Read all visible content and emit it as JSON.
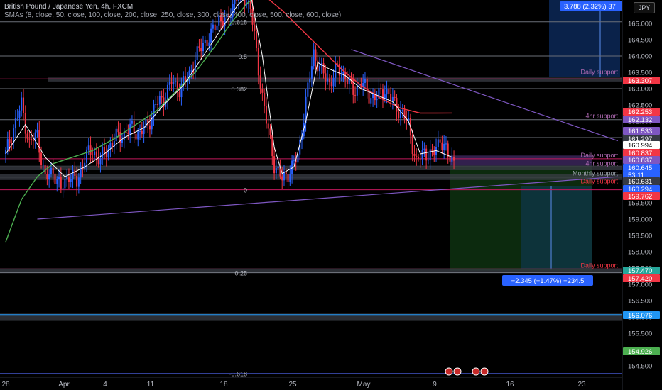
{
  "header": {
    "title": "British Pound / Japanese Yen, 4h, FXCM",
    "indicators": "SMAs (8, close, 50, close, 100, close, 200, close, 250, close, 300, close, 400, close, 500, close, 600, close)"
  },
  "currency_button": "JPY",
  "colors": {
    "candle_up": "#2962ff",
    "candle_down": "#f23645",
    "sma_fast": "#ffffff",
    "sma_red": "#f23645",
    "sma_green": "#4caf50",
    "trendline": "#7e57c2",
    "long_zone": "#1b5e20",
    "short_zone": "#4a148c",
    "target_zone": "#0d2a5c"
  },
  "fib_labels": [
    {
      "text": "0.618",
      "price": 165.05
    },
    {
      "text": "0.5",
      "price": 164.0
    },
    {
      "text": "0.382",
      "price": 163.0
    },
    {
      "text": "0",
      "price": 159.9
    },
    {
      "text": "0.25",
      "price": 157.36
    },
    {
      "text": "-0.618",
      "price": 154.27
    }
  ],
  "level_labels": [
    {
      "text": "Daily support",
      "price": 163.4,
      "color": "#b06ab3"
    },
    {
      "text": "4hr support",
      "price": 162.05,
      "color": "#b06ab3"
    },
    {
      "text": "Daily support",
      "price": 160.85,
      "color": "#b06ab3"
    },
    {
      "text": "4hr support",
      "price": 160.6,
      "color": "#b06ab3"
    },
    {
      "text": "Monthly support",
      "price": 160.29,
      "color": "#9aa0aa"
    },
    {
      "text": "Daily support",
      "price": 160.05,
      "color": "#f23645"
    },
    {
      "text": "Daily support",
      "price": 157.47,
      "color": "#f23645"
    }
  ],
  "price_tags": [
    {
      "text": "163.307",
      "bg": "#f23645",
      "fg": "#ffffff"
    },
    {
      "text": "162.253",
      "bg": "#f23645",
      "fg": "#ffffff"
    },
    {
      "text": "162.132",
      "bg": "#7e57c2",
      "fg": "#ffffff"
    },
    {
      "text": "161.533",
      "bg": "#7e57c2",
      "fg": "#ffffff"
    },
    {
      "text": "161.297",
      "bg": "#363a45",
      "fg": "#ffffff"
    },
    {
      "text": "160.994",
      "bg": "#ffffff",
      "fg": "#000000"
    },
    {
      "text": "160.837",
      "bg": "#f23645",
      "fg": "#ffffff"
    },
    {
      "text": "160.837",
      "bg": "#7e57c2",
      "fg": "#ffffff"
    },
    {
      "text": "160.645",
      "bg": "#2962ff",
      "fg": "#ffffff"
    },
    {
      "text": "53:11",
      "bg": "#2962ff",
      "fg": "#ffffff"
    },
    {
      "text": "160.631",
      "bg": "#363a45",
      "fg": "#ffffff"
    },
    {
      "text": "160.294",
      "bg": "#2962ff",
      "fg": "#ffffff"
    },
    {
      "text": "159.762",
      "bg": "#f23645",
      "fg": "#ffffff"
    },
    {
      "text": "157.470",
      "bg": "#26a69a",
      "fg": "#ffffff"
    },
    {
      "text": "157.420",
      "bg": "#f23645",
      "fg": "#ffffff"
    },
    {
      "text": "156.076",
      "bg": "#2196f3",
      "fg": "#ffffff"
    },
    {
      "text": "154.926",
      "bg": "#4caf50",
      "fg": "#ffffff"
    }
  ],
  "measure_labels": {
    "top": "3.788 (2.32%) 37",
    "bottom": "−2.345 (−1.47%) −234.5"
  },
  "chart_data": {
    "type": "candlestick",
    "title": "British Pound / Japanese Yen, 4h, FXCM",
    "y_axis": {
      "ticks": [
        "165.000",
        "164.500",
        "164.000",
        "163.500",
        "163.000",
        "162.500",
        "162.000",
        "161.500",
        "161.000",
        "160.500",
        "160.000",
        "159.500",
        "159.000",
        "158.500",
        "158.000",
        "157.500",
        "157.000",
        "156.500",
        "156.000",
        "155.500",
        "155.000",
        "154.500"
      ],
      "range": [
        154.2,
        165.8
      ]
    },
    "x_axis": {
      "ticks": [
        "28",
        "Apr",
        "4",
        "11",
        "18",
        "25",
        "May",
        "9",
        "16",
        "23"
      ]
    },
    "price_path": [
      [
        0,
        161.0
      ],
      [
        4,
        161.8
      ],
      [
        8,
        162.5
      ],
      [
        12,
        161.3
      ],
      [
        16,
        161.6
      ],
      [
        20,
        160.2
      ],
      [
        24,
        160.5
      ],
      [
        28,
        159.9
      ],
      [
        32,
        160.4
      ],
      [
        36,
        160.1
      ],
      [
        40,
        160.9
      ],
      [
        44,
        161.1
      ],
      [
        48,
        160.8
      ],
      [
        52,
        161.2
      ],
      [
        56,
        161.5
      ],
      [
        60,
        161.6
      ],
      [
        64,
        161.8
      ],
      [
        68,
        161.6
      ],
      [
        72,
        161.9
      ],
      [
        76,
        162.5
      ],
      [
        80,
        162.7
      ],
      [
        84,
        163.2
      ],
      [
        88,
        163.0
      ],
      [
        92,
        163.3
      ],
      [
        96,
        163.9
      ],
      [
        100,
        164.4
      ],
      [
        104,
        164.6
      ],
      [
        108,
        165.2
      ],
      [
        112,
        165.0
      ],
      [
        116,
        165.8
      ],
      [
        120,
        165.9
      ],
      [
        124,
        165.5
      ],
      [
        128,
        163.6
      ],
      [
        132,
        162.0
      ],
      [
        136,
        160.7
      ],
      [
        140,
        160.2
      ],
      [
        144,
        160.5
      ],
      [
        148,
        160.9
      ],
      [
        152,
        162.6
      ],
      [
        156,
        164.1
      ],
      [
        160,
        163.5
      ],
      [
        164,
        163.2
      ],
      [
        168,
        163.6
      ],
      [
        172,
        163.4
      ],
      [
        176,
        162.9
      ],
      [
        180,
        163.2
      ],
      [
        184,
        162.8
      ],
      [
        188,
        162.7
      ],
      [
        192,
        163.0
      ],
      [
        196,
        162.6
      ],
      [
        200,
        162.3
      ],
      [
        204,
        161.9
      ],
      [
        208,
        160.7
      ],
      [
        212,
        161.1
      ],
      [
        216,
        160.9
      ],
      [
        220,
        161.5
      ],
      [
        224,
        160.9
      ],
      [
        228,
        160.8
      ]
    ],
    "sma_fast": [
      [
        0,
        161.0
      ],
      [
        10,
        161.9
      ],
      [
        20,
        160.9
      ],
      [
        30,
        160.3
      ],
      [
        40,
        160.6
      ],
      [
        50,
        161.0
      ],
      [
        60,
        161.5
      ],
      [
        70,
        161.8
      ],
      [
        80,
        162.5
      ],
      [
        90,
        163.1
      ],
      [
        100,
        164.0
      ],
      [
        110,
        164.9
      ],
      [
        118,
        165.6
      ],
      [
        124,
        165.9
      ],
      [
        130,
        164.0
      ],
      [
        136,
        161.2
      ],
      [
        140,
        160.4
      ],
      [
        146,
        160.6
      ],
      [
        152,
        162.0
      ],
      [
        158,
        163.8
      ],
      [
        164,
        163.6
      ],
      [
        172,
        163.4
      ],
      [
        180,
        163.0
      ],
      [
        188,
        162.8
      ],
      [
        196,
        162.6
      ],
      [
        204,
        162.0
      ],
      [
        210,
        161.0
      ],
      [
        218,
        161.1
      ],
      [
        226,
        160.9
      ]
    ],
    "sma_red": [
      [
        130,
        165.9
      ],
      [
        140,
        165.4
      ],
      [
        150,
        164.8
      ],
      [
        160,
        164.2
      ],
      [
        170,
        163.6
      ],
      [
        180,
        163.1
      ],
      [
        190,
        162.7
      ],
      [
        200,
        162.4
      ],
      [
        210,
        162.25
      ],
      [
        218,
        162.25
      ],
      [
        226,
        162.253
      ]
    ],
    "sma_green": [
      [
        0,
        158.3
      ],
      [
        8,
        159.6
      ],
      [
        16,
        160.3
      ],
      [
        24,
        160.7
      ],
      [
        34,
        160.9
      ],
      [
        44,
        161.1
      ],
      [
        56,
        161.5
      ],
      [
        66,
        161.9
      ],
      [
        76,
        162.3
      ],
      [
        86,
        162.9
      ],
      [
        96,
        163.5
      ],
      [
        106,
        164.3
      ],
      [
        114,
        165.0
      ],
      [
        122,
        165.6
      ],
      [
        128,
        165.9
      ]
    ],
    "horizontal_levels": [
      165.05,
      164.0,
      163.3,
      163.0,
      162.05,
      161.5,
      160.85,
      160.6,
      160.29,
      159.9,
      157.47,
      157.36,
      156.07,
      154.27
    ],
    "trendlines": [
      {
        "from": [
          16,
          159.0
        ],
        "to": [
          310,
          160.3
        ]
      },
      {
        "from": [
          175,
          164.2
        ],
        "to": [
          310,
          161.4
        ]
      }
    ],
    "positions": [
      {
        "type": "long",
        "entry": 160.64,
        "stop": 160.95,
        "target": 157.42
      },
      {
        "type": "measure",
        "from": 160.0,
        "to": 157.47,
        "change": "−2.345 (−1.47%)"
      }
    ]
  }
}
